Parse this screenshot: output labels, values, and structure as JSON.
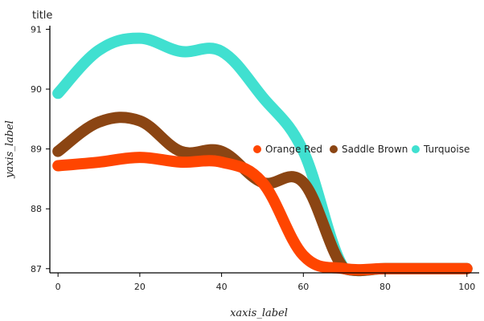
{
  "chart_data": {
    "type": "line",
    "title": "title",
    "xlabel": "xaxis_label",
    "ylabel": "yaxis_label",
    "xlim": [
      -2,
      103
    ],
    "ylim": [
      86.93,
      91.06
    ],
    "x_ticks": [
      0,
      20,
      40,
      60,
      80,
      100
    ],
    "x_tick_labels": [
      "0",
      "20",
      "40",
      "60",
      "80",
      "100"
    ],
    "y_ticks": [
      87,
      88,
      89,
      90,
      91
    ],
    "y_tick_labels": [
      "87",
      "88",
      "89",
      "90",
      "91"
    ],
    "grid": false,
    "legend_position": "right",
    "x": [
      0,
      10,
      20,
      30,
      40,
      50,
      60,
      70,
      80,
      90,
      100
    ],
    "series": [
      {
        "name": "Orange Red",
        "color": "#ff4500",
        "values": [
          88.72,
          88.78,
          88.86,
          88.78,
          88.78,
          88.44,
          87.22,
          87.0,
          87.0,
          87.0,
          87.0
        ]
      },
      {
        "name": "Saddle Brown",
        "color": "#8b4513",
        "values": [
          88.96,
          89.45,
          89.47,
          88.96,
          88.96,
          88.44,
          88.44,
          87.0,
          87.0,
          87.0,
          87.0
        ]
      },
      {
        "name": "Turquoise",
        "color": "#40e0d0",
        "values": [
          89.93,
          90.65,
          90.85,
          90.63,
          90.63,
          89.87,
          88.96,
          87.0,
          87.0,
          87.0,
          87.0
        ]
      }
    ]
  }
}
